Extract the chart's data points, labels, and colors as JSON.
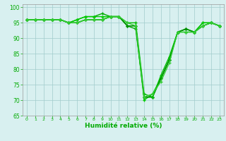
{
  "series": [
    {
      "x": [
        0,
        1,
        2,
        3,
        4,
        5,
        6,
        7,
        8,
        9,
        10,
        11,
        12,
        13,
        14,
        15,
        16,
        17,
        18,
        19,
        20,
        21,
        22,
        23
      ],
      "y": [
        96,
        96,
        96,
        96,
        96,
        95,
        96,
        97,
        97,
        98,
        97,
        97,
        94,
        93,
        71,
        71,
        77,
        83,
        92,
        93,
        92,
        95,
        95,
        94
      ],
      "color": "#00aa00",
      "lw": 1.0
    },
    {
      "x": [
        0,
        1,
        2,
        3,
        4,
        5,
        6,
        7,
        8,
        9,
        10,
        11,
        12,
        13,
        14,
        15,
        16,
        17,
        18,
        19,
        20,
        21,
        22,
        23
      ],
      "y": [
        96,
        96,
        96,
        96,
        96,
        95,
        96,
        97,
        97,
        97,
        97,
        97,
        94,
        94,
        70,
        72,
        77,
        83,
        92,
        93,
        92,
        95,
        95,
        94
      ],
      "color": "#00cc00",
      "lw": 1.0
    },
    {
      "x": [
        0,
        1,
        2,
        3,
        4,
        5,
        6,
        7,
        8,
        9,
        10,
        11,
        12,
        13,
        14,
        15,
        16,
        17,
        18,
        19,
        20,
        21,
        22,
        23
      ],
      "y": [
        96,
        96,
        96,
        96,
        96,
        95,
        95,
        96,
        96,
        96,
        97,
        97,
        94,
        94,
        71,
        71,
        77,
        83,
        92,
        93,
        92,
        94,
        95,
        94
      ],
      "color": "#008800",
      "lw": 1.0
    },
    {
      "x": [
        0,
        1,
        2,
        3,
        4,
        5,
        6,
        7,
        8,
        9,
        10,
        11,
        12,
        13,
        14,
        15,
        16,
        17,
        18,
        19,
        20,
        21,
        22,
        23
      ],
      "y": [
        96,
        96,
        96,
        96,
        96,
        95,
        95,
        96,
        96,
        96,
        97,
        97,
        95,
        95,
        72,
        71,
        78,
        84,
        92,
        92,
        92,
        94,
        95,
        94
      ],
      "color": "#00bb00",
      "lw": 1.0
    },
    {
      "x": [
        0,
        1,
        2,
        3,
        4,
        5,
        6,
        7,
        8,
        9,
        10,
        11,
        12,
        13,
        14,
        15,
        16,
        17,
        18,
        19,
        20,
        21,
        22,
        23
      ],
      "y": [
        96,
        96,
        96,
        96,
        96,
        95,
        95,
        96,
        96,
        96,
        97,
        97,
        95,
        94,
        71,
        72,
        76,
        82,
        92,
        92,
        92,
        94,
        95,
        94
      ],
      "color": "#33cc33",
      "lw": 1.0
    }
  ],
  "xlabel": "Humidité relative (%)",
  "xlim": [
    -0.5,
    23.5
  ],
  "ylim": [
    65,
    101
  ],
  "yticks": [
    65,
    70,
    75,
    80,
    85,
    90,
    95,
    100
  ],
  "xticks": [
    0,
    1,
    2,
    3,
    4,
    5,
    6,
    7,
    8,
    9,
    10,
    11,
    12,
    13,
    14,
    15,
    16,
    17,
    18,
    19,
    20,
    21,
    22,
    23
  ],
  "background_color": "#d8f0f0",
  "grid_color": "#a0cccc",
  "tick_color": "#00aa00",
  "label_color": "#00aa00",
  "marker": "+",
  "markersize": 3.5,
  "markeredgewidth": 1.0
}
